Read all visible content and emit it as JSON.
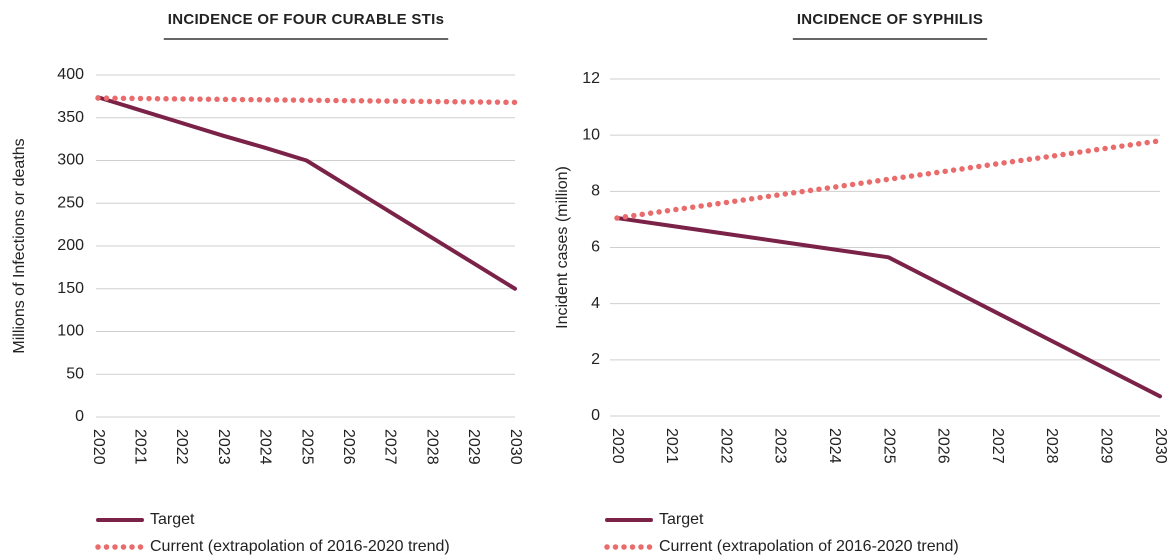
{
  "chart_data": [
    {
      "type": "line",
      "title": "INCIDENCE OF FOUR CURABLE STIs",
      "y_label": "Millions of Infections or deaths",
      "x": [
        2020,
        2021,
        2022,
        2023,
        2024,
        2025,
        2026,
        2027,
        2028,
        2029,
        2030
      ],
      "series": [
        {
          "name": "Target",
          "color": "#7b2248",
          "style": "solid",
          "values": [
            374,
            359,
            344,
            329,
            315,
            300,
            270,
            240,
            210,
            180,
            150
          ]
        },
        {
          "name": "Current (extrapolation of 2016-2020 trend)",
          "color": "#e96b6b",
          "style": "dotted",
          "values": [
            373,
            372.5,
            372,
            371.5,
            371,
            370.5,
            370,
            369.5,
            369,
            368.5,
            368
          ]
        }
      ],
      "xlim": [
        2020,
        2030
      ],
      "xticks": [
        2020,
        2021,
        2022,
        2023,
        2024,
        2025,
        2026,
        2027,
        2028,
        2029,
        2030
      ],
      "ylim": [
        0,
        400
      ],
      "yticks": [
        0,
        50,
        100,
        150,
        200,
        250,
        300,
        350,
        400
      ],
      "grid": true
    },
    {
      "type": "line",
      "title": "INCIDENCE OF SYPHILIS",
      "y_label": "Incident cases (million)",
      "x": [
        2020,
        2021,
        2022,
        2023,
        2024,
        2025,
        2026,
        2027,
        2028,
        2029,
        2030
      ],
      "series": [
        {
          "name": "Target",
          "color": "#7b2248",
          "style": "solid",
          "values": [
            7.05,
            6.77,
            6.49,
            6.21,
            5.93,
            5.65,
            4.66,
            3.67,
            2.68,
            1.69,
            0.7
          ]
        },
        {
          "name": "Current (extrapolation of 2016-2020 trend)",
          "color": "#e96b6b",
          "style": "dotted",
          "values": [
            7.05,
            7.33,
            7.6,
            7.88,
            8.15,
            8.43,
            8.7,
            8.98,
            9.25,
            9.53,
            9.8
          ]
        }
      ],
      "xlim": [
        2020,
        2030
      ],
      "xticks": [
        2020,
        2021,
        2022,
        2023,
        2024,
        2025,
        2026,
        2027,
        2028,
        2029,
        2030
      ],
      "ylim": [
        0,
        12
      ],
      "yticks": [
        0,
        2,
        4,
        6,
        8,
        10,
        12
      ],
      "grid": true
    }
  ]
}
